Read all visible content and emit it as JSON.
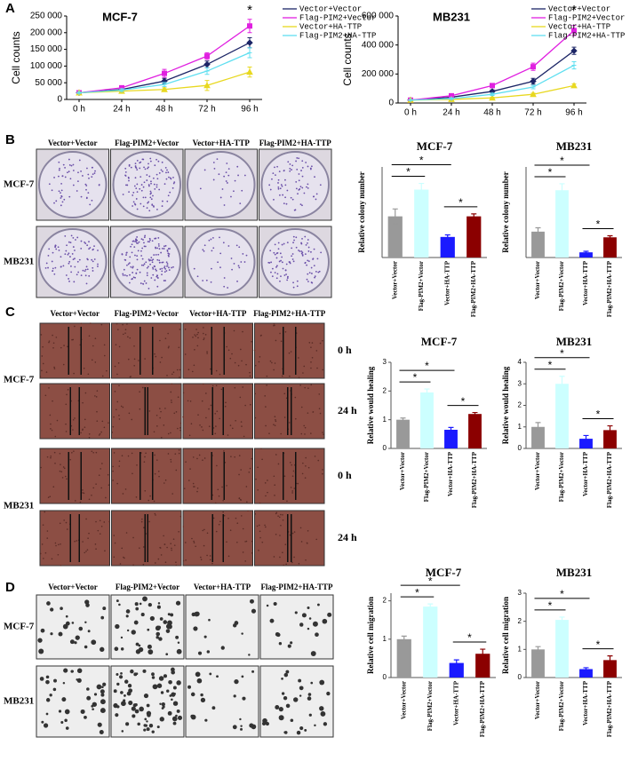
{
  "panel_labels": [
    "A",
    "B",
    "C",
    "D"
  ],
  "colony_assay": {
    "columns": [
      "Vector+Vector",
      "Flag-PIM2+Vector",
      "Vector+HA-TTP",
      "Flag-PIM2+HA-TTP"
    ],
    "rows": [
      "MCF-7",
      "MB231"
    ]
  },
  "wound_assay": {
    "columns": [
      "Vector+Vector",
      "Flag-PIM2+Vector",
      "Vector+HA-TTP",
      "Flag-PIM2+HA-TTP"
    ],
    "rows": [
      "MCF-7",
      "MB231"
    ],
    "times": [
      "0 h",
      "24 h",
      "0 h",
      "24 h"
    ]
  },
  "migration_assay": {
    "columns": [
      "Vector+Vector",
      "Flag-PIM2+Vector",
      "Vector+HA-TTP",
      "Flag-PIM2+HA-TTP"
    ],
    "rows": [
      "MCF-7",
      "MB231"
    ]
  },
  "chart_data": [
    {
      "type": "line",
      "title": "MCF-7",
      "y_label": "Cell counts",
      "categories": [
        "0 h",
        "24 h",
        "48 h",
        "72 h",
        "96 h"
      ],
      "series": [
        {
          "name": "Vector+Vector",
          "color": "#1c2566",
          "marker": "diamond",
          "values": [
            20000,
            30000,
            55000,
            105000,
            170000
          ],
          "errors": [
            2000,
            4000,
            8000,
            10000,
            15000
          ]
        },
        {
          "name": "Flag-PIM2+Vector",
          "color": "#e020e0",
          "marker": "square",
          "values": [
            20000,
            35000,
            78000,
            130000,
            220000
          ],
          "errors": [
            2000,
            5000,
            12000,
            10000,
            20000
          ]
        },
        {
          "name": "Vector+HA-TTP",
          "color": "#e8d820",
          "marker": "triangle",
          "values": [
            20000,
            25000,
            30000,
            42000,
            82000
          ],
          "errors": [
            2000,
            3000,
            5000,
            15000,
            15000
          ]
        },
        {
          "name": "Flag-PIM2+HA-TTP",
          "color": "#60dff0",
          "marker": "cross",
          "values": [
            20000,
            28000,
            45000,
            85000,
            140000
          ],
          "errors": [
            2000,
            4000,
            6000,
            10000,
            15000
          ]
        }
      ],
      "ylim": [
        0,
        250000
      ],
      "yticks": [
        0,
        {
          "value": 50000,
          "label": "50 000"
        },
        {
          "value": 100000,
          "label": "100 000"
        },
        {
          "value": 150000,
          "label": "150 000"
        },
        {
          "value": 200000,
          "label": "200 000"
        },
        {
          "value": 250000,
          "label": "250 000"
        }
      ],
      "annotations": [
        "*"
      ]
    },
    {
      "type": "line",
      "title": "MB231",
      "y_label": "Cell counts",
      "categories": [
        "0 h",
        "24 h",
        "48 h",
        "72 h",
        "96 h"
      ],
      "series": [
        {
          "name": "Vector+Vector",
          "color": "#1c2566",
          "marker": "diamond",
          "values": [
            20000,
            40000,
            80000,
            150000,
            360000
          ],
          "errors": [
            3000,
            5000,
            10000,
            20000,
            25000
          ]
        },
        {
          "name": "Flag-PIM2+Vector",
          "color": "#e020e0",
          "marker": "square",
          "values": [
            20000,
            50000,
            120000,
            250000,
            500000
          ],
          "errors": [
            3000,
            8000,
            12000,
            25000,
            35000
          ]
        },
        {
          "name": "Vector+HA-TTP",
          "color": "#e8d820",
          "marker": "triangle",
          "values": [
            20000,
            25000,
            35000,
            60000,
            120000
          ],
          "errors": [
            3000,
            4000,
            5000,
            8000,
            12000
          ]
        },
        {
          "name": "Flag-PIM2+HA-TTP",
          "color": "#60dff0",
          "marker": "cross",
          "values": [
            20000,
            30000,
            60000,
            110000,
            260000
          ],
          "errors": [
            3000,
            5000,
            8000,
            12000,
            25000
          ]
        }
      ],
      "ylim": [
        0,
        600000
      ],
      "yticks": [
        0,
        {
          "value": 200000,
          "label": "200 000"
        },
        {
          "value": 400000,
          "label": "400 000"
        },
        {
          "value": 600000,
          "label": "600 000"
        }
      ],
      "annotations": [
        "*"
      ]
    },
    {
      "type": "bar",
      "title": "MCF-7",
      "y_label": "Relative colony number",
      "categories": [
        "Vector+Vector",
        "Flag-PIM2+Vector",
        "Vector+HA-TTP",
        "Flag-PIM2+HA-TTP"
      ],
      "colors": [
        "#999999",
        "#ccffff",
        "#1a1aff",
        "#8b0000"
      ],
      "values": [
        1.0,
        1.65,
        0.5,
        1.0
      ],
      "errors": [
        0.18,
        0.15,
        0.05,
        0.06
      ],
      "ylim": [
        0,
        2.2
      ],
      "annotations": [
        "*",
        "*",
        "*"
      ]
    },
    {
      "type": "bar",
      "title": "MB231",
      "y_label": "Relative colony number",
      "categories": [
        "Vector+Vector",
        "Flag-PIM2+Vector",
        "Vector+HA-TTP",
        "Flag-PIM2+HA-TTP"
      ],
      "colors": [
        "#999999",
        "#ccffff",
        "#1a1aff",
        "#8b0000"
      ],
      "values": [
        1.0,
        2.6,
        0.2,
        0.78
      ],
      "errors": [
        0.15,
        0.25,
        0.04,
        0.06
      ],
      "ylim": [
        0,
        3.5
      ],
      "annotations": [
        "*",
        "*",
        "*"
      ]
    },
    {
      "type": "bar",
      "title": "MCF-7",
      "y_label": "Relative would healing",
      "categories": [
        "Vector+Vector",
        "Flag-PIM2+Vector",
        "Vector+HA-TTP",
        "Flag-PIM2+HA-TTP"
      ],
      "colors": [
        "#999999",
        "#ccffff",
        "#1a1aff",
        "#8b0000"
      ],
      "values": [
        1.0,
        1.95,
        0.65,
        1.2
      ],
      "errors": [
        0.06,
        0.12,
        0.08,
        0.05
      ],
      "ylim": [
        0,
        3
      ],
      "yticks": [
        0,
        1,
        2,
        3
      ],
      "annotations": [
        "*",
        "*",
        "*"
      ]
    },
    {
      "type": "bar",
      "title": "MB231",
      "y_label": "Relative would healing",
      "categories": [
        "Vector+Vector",
        "Flag-PIM2+Vector",
        "Vector+HA-TTP",
        "Flag-PIM2+HA-TTP"
      ],
      "colors": [
        "#999999",
        "#ccffff",
        "#1a1aff",
        "#8b0000"
      ],
      "values": [
        1.0,
        3.0,
        0.45,
        0.85
      ],
      "errors": [
        0.2,
        0.35,
        0.15,
        0.2
      ],
      "ylim": [
        0,
        4
      ],
      "yticks": [
        0,
        1,
        2,
        3,
        4
      ],
      "annotations": [
        "*",
        "*",
        "*"
      ]
    },
    {
      "type": "bar",
      "title": "MCF-7",
      "y_label": "Relative cell migration",
      "categories": [
        "Vector+Vector",
        "Flag-PIM2+Vector",
        "Vector+HA-TTP",
        "Flag-PIM2+HA-TTP"
      ],
      "colors": [
        "#999999",
        "#ccffff",
        "#1a1aff",
        "#8b0000"
      ],
      "values": [
        1.0,
        1.85,
        0.38,
        0.62
      ],
      "errors": [
        0.08,
        0.07,
        0.08,
        0.12
      ],
      "ylim": [
        0,
        2.2
      ],
      "yticks": [
        0,
        1,
        2
      ],
      "annotations": [
        "*",
        "*",
        "*"
      ]
    },
    {
      "type": "bar",
      "title": "MB231",
      "y_label": "Relative cell migration",
      "categories": [
        "Vector+Vector",
        "Flag-PIM2+Vector",
        "Vector+HA-TTP",
        "Flag-PIM2+HA-TTP"
      ],
      "colors": [
        "#999999",
        "#ccffff",
        "#1a1aff",
        "#8b0000"
      ],
      "values": [
        1.0,
        2.05,
        0.3,
        0.62
      ],
      "errors": [
        0.1,
        0.1,
        0.05,
        0.15
      ],
      "ylim": [
        0,
        3
      ],
      "yticks": [
        0,
        1,
        2,
        3
      ],
      "annotations": [
        "*",
        "*",
        "*"
      ]
    }
  ]
}
